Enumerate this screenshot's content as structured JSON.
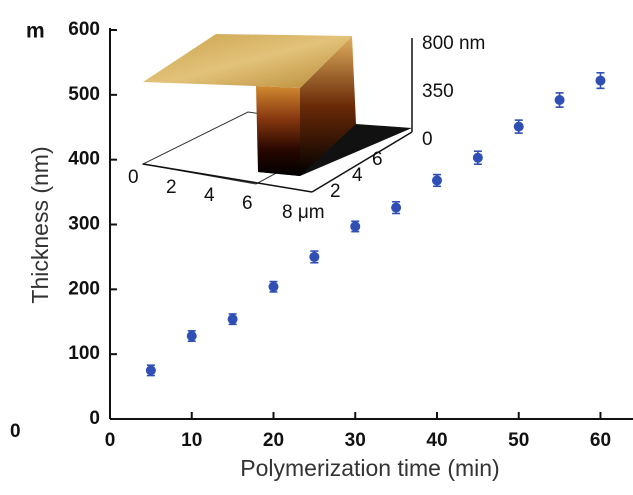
{
  "panel_label": "m",
  "left_panel_tick": "0",
  "inset": {
    "x_labels": [
      "0",
      "2",
      "4",
      "6",
      "8 μm"
    ],
    "y_labels": [
      "2",
      "4",
      "6"
    ],
    "z_labels": [
      "800 nm",
      "350",
      "0"
    ]
  },
  "chart_data": {
    "type": "scatter",
    "x_label": "Polymerization time (min)",
    "y_label": "Thickness (nm)",
    "xlim": [
      0,
      63
    ],
    "ylim": [
      0,
      600
    ],
    "xticks": [
      0,
      10,
      20,
      30,
      40,
      50,
      60
    ],
    "yticks": [
      0,
      100,
      200,
      300,
      400,
      500,
      600
    ],
    "series": [
      {
        "color": "#2f4fb5",
        "x": [
          5,
          10,
          15,
          20,
          25,
          30,
          35,
          40,
          45,
          50,
          55,
          60
        ],
        "values": [
          75,
          128,
          154,
          204,
          250,
          297,
          326,
          368,
          403,
          451,
          492,
          522
        ],
        "errors": [
          8,
          8,
          8,
          8,
          9,
          8,
          9,
          9,
          10,
          10,
          11,
          12
        ]
      }
    ]
  }
}
